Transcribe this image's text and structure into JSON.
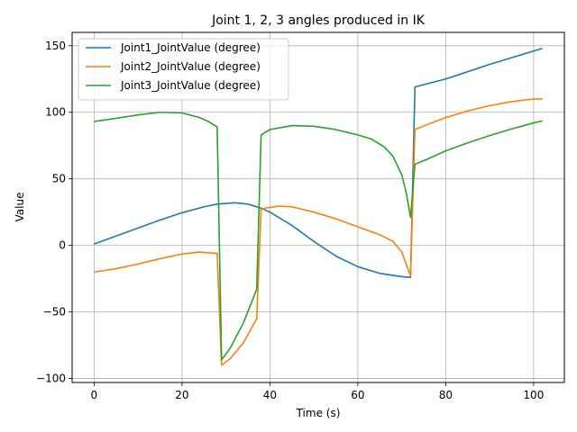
{
  "chart_data": {
    "type": "line",
    "title": "Joint 1, 2, 3 angles produced in IK",
    "xlabel": "Time (s)",
    "ylabel": "Value",
    "xlim": [
      -5,
      107
    ],
    "ylim": [
      -103,
      160
    ],
    "xticks": [
      0,
      20,
      40,
      60,
      80,
      100
    ],
    "yticks": [
      -100,
      -50,
      0,
      50,
      100,
      150
    ],
    "grid": true,
    "legend_position": "upper-left",
    "series": [
      {
        "name": "Joint1_JointValue (degree)",
        "color": "#1f77b4",
        "points": [
          [
            0,
            1
          ],
          [
            5,
            7
          ],
          [
            10,
            13
          ],
          [
            15,
            19
          ],
          [
            20,
            24.5
          ],
          [
            25,
            29
          ],
          [
            28,
            31
          ],
          [
            32,
            32
          ],
          [
            35,
            31
          ],
          [
            38,
            28
          ],
          [
            40,
            25
          ],
          [
            45,
            15
          ],
          [
            50,
            3
          ],
          [
            55,
            -8
          ],
          [
            60,
            -16
          ],
          [
            65,
            -21
          ],
          [
            70,
            -23.5
          ],
          [
            72,
            -24
          ],
          [
            73,
            119
          ],
          [
            80,
            125
          ],
          [
            90,
            136
          ],
          [
            102,
            148
          ]
        ]
      },
      {
        "name": "Joint2_JointValue (degree)",
        "color": "#ff7f0e",
        "points": [
          [
            0,
            -20
          ],
          [
            5,
            -17.5
          ],
          [
            10,
            -14
          ],
          [
            15,
            -10
          ],
          [
            20,
            -6.5
          ],
          [
            24,
            -5
          ],
          [
            26,
            -5.5
          ],
          [
            28,
            -6
          ],
          [
            29,
            -90
          ],
          [
            31,
            -85
          ],
          [
            34,
            -73
          ],
          [
            37,
            -55
          ],
          [
            38,
            27
          ],
          [
            39,
            28
          ],
          [
            42,
            29.5
          ],
          [
            45,
            29
          ],
          [
            50,
            25
          ],
          [
            55,
            20
          ],
          [
            60,
            14
          ],
          [
            65,
            8
          ],
          [
            68,
            3
          ],
          [
            70,
            -5
          ],
          [
            72,
            -23
          ],
          [
            73,
            87
          ],
          [
            76,
            91
          ],
          [
            80,
            96
          ],
          [
            85,
            101
          ],
          [
            90,
            105
          ],
          [
            95,
            108
          ],
          [
            100,
            110
          ],
          [
            102,
            110
          ]
        ]
      },
      {
        "name": "Joint3_JointValue (degree)",
        "color": "#2ca02c",
        "points": [
          [
            0,
            93
          ],
          [
            5,
            95.5
          ],
          [
            10,
            98
          ],
          [
            15,
            100
          ],
          [
            20,
            99.5
          ],
          [
            24,
            96
          ],
          [
            26,
            93
          ],
          [
            28,
            89
          ],
          [
            29,
            -86
          ],
          [
            31,
            -77
          ],
          [
            34,
            -58
          ],
          [
            37,
            -33
          ],
          [
            38,
            83
          ],
          [
            40,
            87
          ],
          [
            45,
            90
          ],
          [
            50,
            89.5
          ],
          [
            55,
            87
          ],
          [
            60,
            83
          ],
          [
            63,
            80
          ],
          [
            66,
            74
          ],
          [
            68,
            67
          ],
          [
            70,
            53
          ],
          [
            71,
            40
          ],
          [
            72,
            21
          ],
          [
            73,
            61
          ],
          [
            76,
            65
          ],
          [
            80,
            71
          ],
          [
            85,
            77
          ],
          [
            90,
            82.5
          ],
          [
            95,
            87.5
          ],
          [
            100,
            92
          ],
          [
            102,
            93.5
          ]
        ]
      }
    ]
  }
}
